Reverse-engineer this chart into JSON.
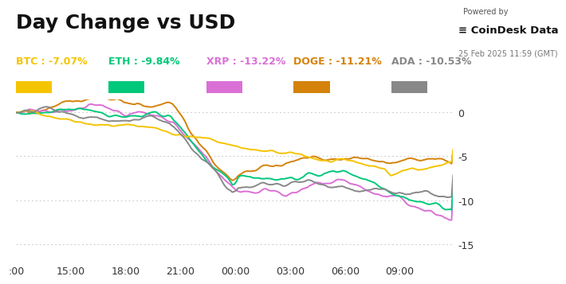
{
  "title": "Day Change vs USD",
  "powered_by": "Powered by",
  "brand": "≡ CoinDesk Data",
  "date_label": "25 Feb 2025 11:59 (GMT)",
  "legend": [
    {
      "label": "BTC : -7.07%",
      "color": "#f5c400"
    },
    {
      "label": "ETH : -9.84%",
      "color": "#00c87a"
    },
    {
      "label": "XRP : -13.22%",
      "color": "#da70d6"
    },
    {
      "label": "DOGE : -11.21%",
      "color": "#d4820a"
    },
    {
      "label": "ADA : -10.53%",
      "color": "#888888"
    }
  ],
  "xtick_labels": [
    ":00",
    "15:00",
    "18:00",
    "21:00",
    "00:00",
    "03:00",
    "06:00",
    "09:00"
  ],
  "ytick_labels": [
    "0",
    "-5",
    "-10",
    "-15"
  ],
  "ytick_values": [
    0,
    -5,
    -10,
    -15
  ],
  "ymin": -17,
  "ymax": 1.5,
  "background_color": "#ffffff",
  "grid_color": "#cccccc",
  "title_fontsize": 18,
  "label_fontsize": 9
}
